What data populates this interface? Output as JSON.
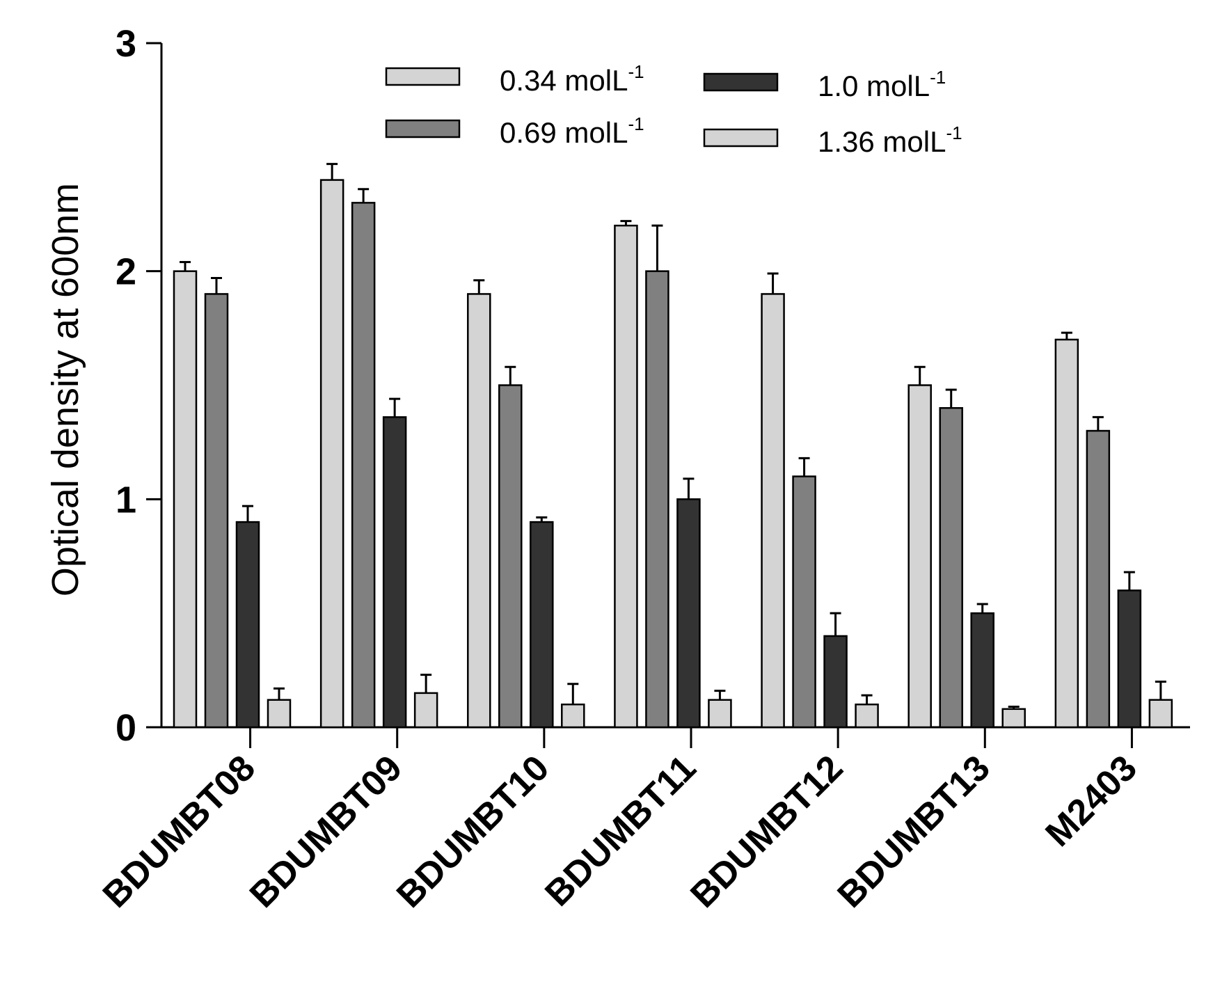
{
  "chart_data": {
    "type": "bar",
    "title": "",
    "xlabel": "",
    "ylabel": "Optical density at 600nm",
    "ylim": [
      0,
      3
    ],
    "yticks": [
      "0",
      "1",
      "2",
      "3"
    ],
    "grid": false,
    "legend_position": "top",
    "categories": [
      "BDUMBT08",
      "BDUMBT09",
      "BDUMBT10",
      "BDUMBT11",
      "BDUMBT12",
      "BDUMBT13",
      "M2403"
    ],
    "series": [
      {
        "name": "0.34 molL",
        "unit_suffix": "-1",
        "color": "#d4d4d4",
        "values": [
          2.0,
          2.4,
          1.9,
          2.2,
          1.9,
          1.5,
          1.7
        ],
        "errors": [
          0.04,
          0.07,
          0.06,
          0.02,
          0.09,
          0.08,
          0.03
        ]
      },
      {
        "name": "0.69 molL",
        "unit_suffix": "-1",
        "color": "#808080",
        "values": [
          1.9,
          2.3,
          1.5,
          2.0,
          1.1,
          1.4,
          1.3
        ],
        "errors": [
          0.07,
          0.06,
          0.08,
          0.2,
          0.08,
          0.08,
          0.06
        ]
      },
      {
        "name": "1.0 molL",
        "unit_suffix": "-1",
        "color": "#333333",
        "values": [
          0.9,
          1.36,
          0.9,
          1.0,
          0.4,
          0.5,
          0.6
        ],
        "errors": [
          0.07,
          0.08,
          0.02,
          0.09,
          0.1,
          0.04,
          0.08
        ]
      },
      {
        "name": "1.36 molL",
        "unit_suffix": "-1",
        "color": "#d4d4d4",
        "values": [
          0.12,
          0.15,
          0.1,
          0.12,
          0.1,
          0.08,
          0.12
        ],
        "errors": [
          0.05,
          0.08,
          0.09,
          0.04,
          0.04,
          0.01,
          0.08
        ]
      }
    ]
  }
}
